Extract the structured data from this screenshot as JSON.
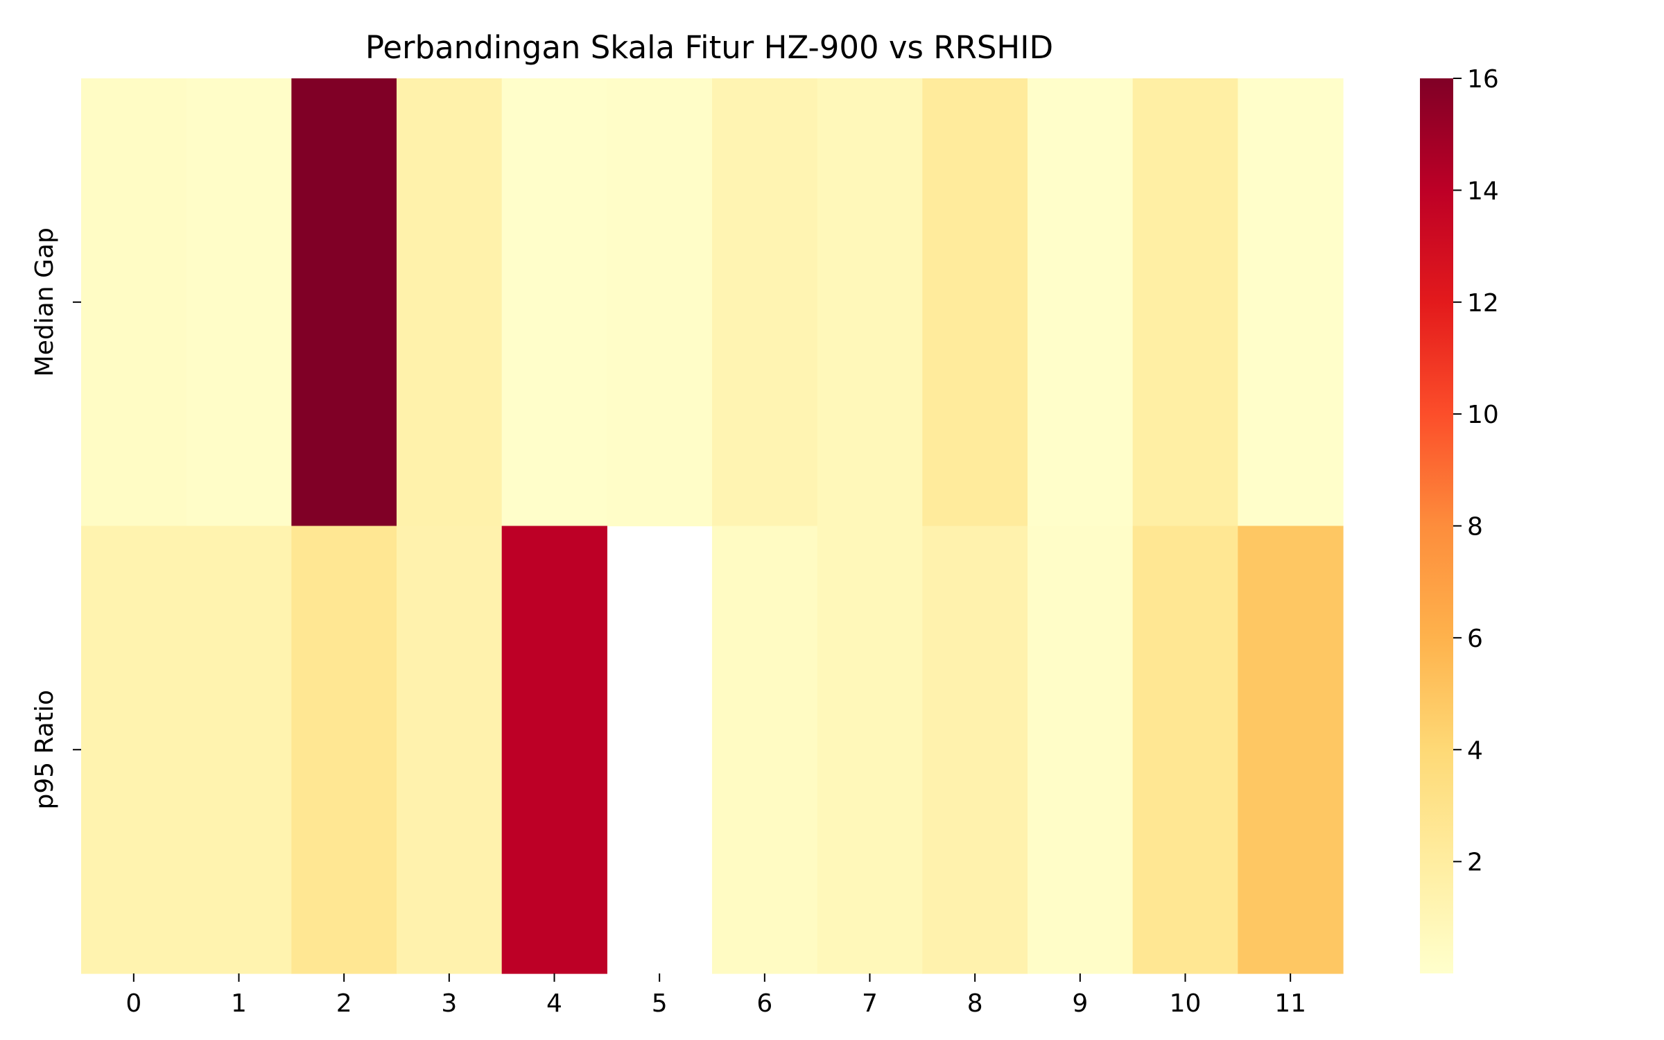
{
  "chart_data": {
    "type": "heatmap",
    "title": "Perbandingan Skala Fitur HZ-900 vs RRSHID",
    "xlabel": "",
    "ylabel": "",
    "x_categories": [
      "0",
      "1",
      "2",
      "3",
      "4",
      "5",
      "6",
      "7",
      "8",
      "9",
      "10",
      "11"
    ],
    "y_categories": [
      "Median Gap",
      "p95 Ratio"
    ],
    "values": [
      [
        0.3,
        0.2,
        16.0,
        1.5,
        0.1,
        0.2,
        1.2,
        0.8,
        2.2,
        0.1,
        1.8,
        0.1
      ],
      [
        1.3,
        1.3,
        2.6,
        1.4,
        14.0,
        null,
        0.4,
        0.8,
        1.4,
        0.2,
        2.6,
        4.9
      ]
    ],
    "colormap": "YlOrRd",
    "vmin": 0,
    "vmax": 16,
    "colorbar_ticks": [
      2,
      4,
      6,
      8,
      10,
      12,
      14,
      16
    ],
    "grid": false,
    "missing_cells": [
      [
        1,
        5
      ]
    ]
  }
}
